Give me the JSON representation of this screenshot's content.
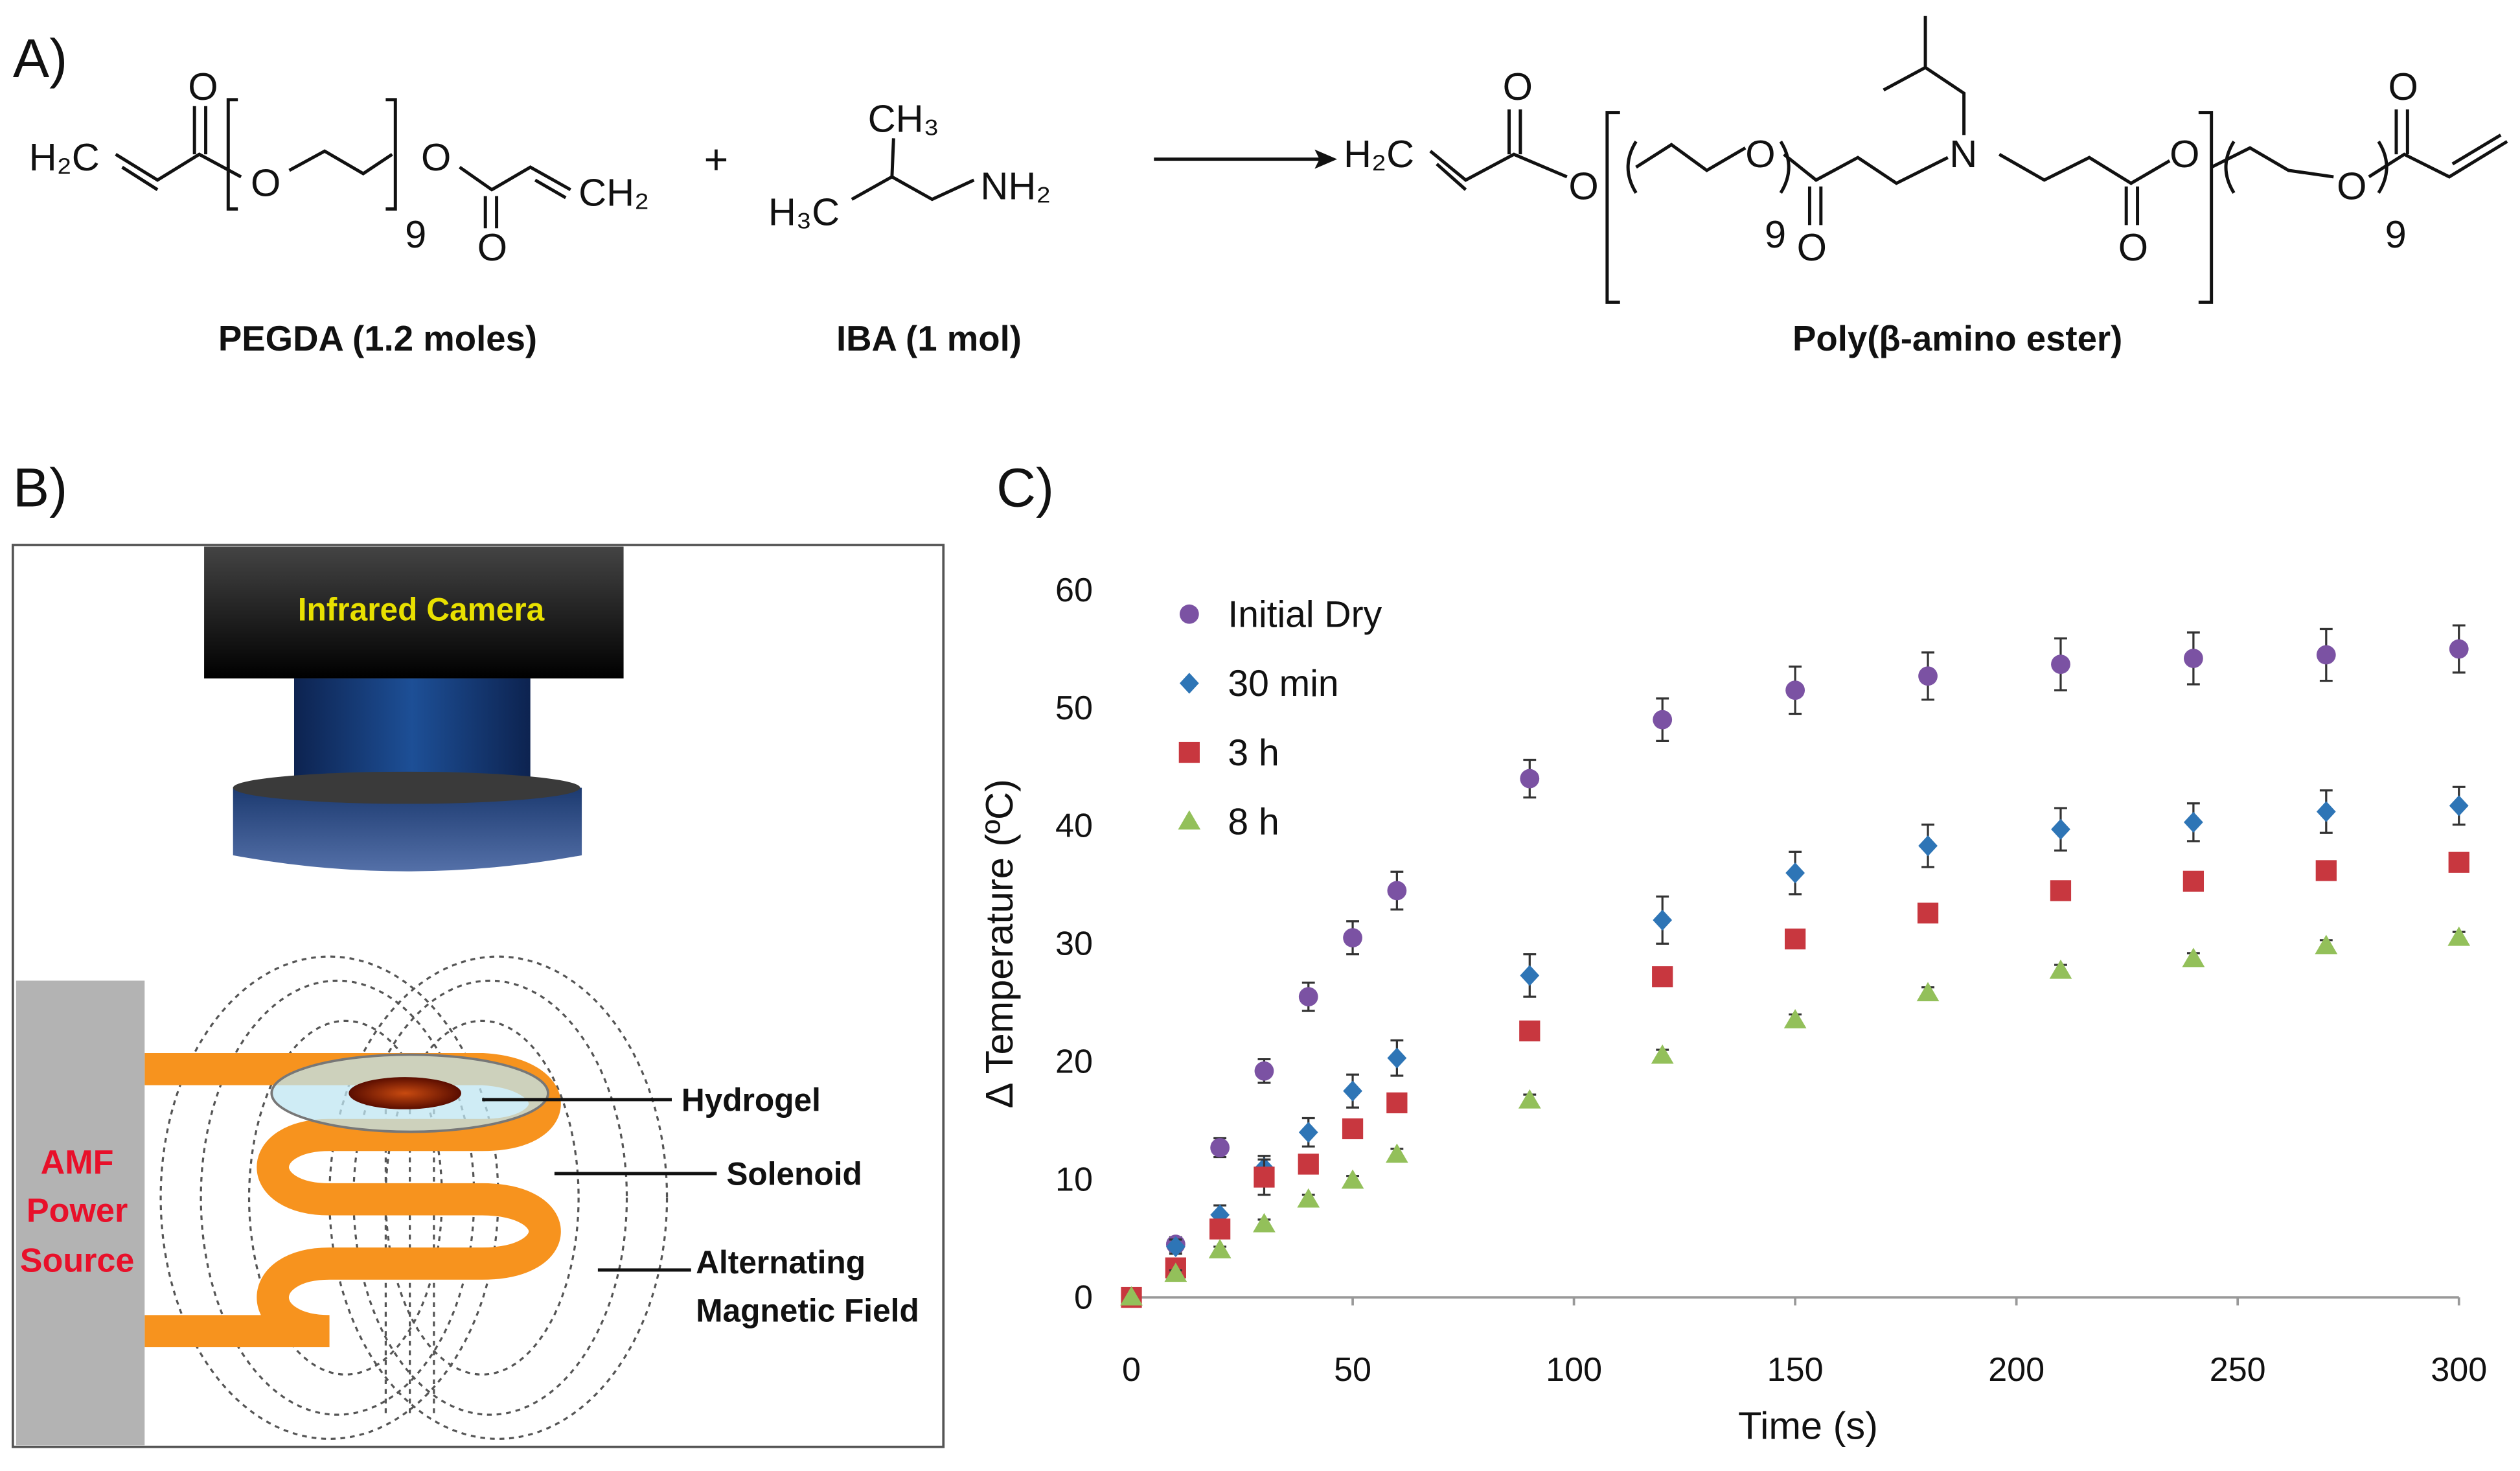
{
  "panels": {
    "a": "A)",
    "b": "B)",
    "c": "C)"
  },
  "scheme": {
    "atoms": [
      "H₂C",
      "O",
      "O",
      "9",
      "O",
      "O",
      "CH₂",
      "CH₃",
      "H₃C",
      "NH₂",
      "H₂C",
      "O",
      "O",
      "O",
      "9",
      "O",
      "N",
      "O",
      "O",
      "9",
      "O",
      "O"
    ],
    "plus": "+",
    "labels": [
      "PEGDA (1.2 moles)",
      "IBA (1 mol)",
      "Poly(β-amino ester)"
    ]
  },
  "diagram": {
    "camera": "Infrared Camera",
    "source": [
      "AMF",
      "Power",
      "Source"
    ],
    "hydrogel": "Hydrogel",
    "solenoid": "Solenoid",
    "field": [
      "Alternating",
      "Magnetic Field"
    ]
  },
  "chart_data": {
    "type": "scatter",
    "x_label": "Time (s)",
    "y_label": "Δ Temperature (ºC)",
    "x": [
      0,
      10,
      20,
      30,
      40,
      50,
      60,
      90,
      120,
      150,
      180,
      210,
      240,
      270,
      300
    ],
    "series": [
      {
        "name": "Initial Dry",
        "color": "#7b52a3",
        "marker": "circle",
        "values": [
          0,
          4.5,
          12.7,
          19.2,
          25.5,
          30.5,
          34.5,
          44,
          49,
          51.5,
          52.7,
          53.7,
          54.2,
          54.5,
          55
        ],
        "errors": [
          0,
          0.6,
          0.8,
          1.0,
          1.2,
          1.4,
          1.6,
          1.6,
          1.8,
          2.0,
          2.0,
          2.2,
          2.2,
          2.2,
          2.0
        ]
      },
      {
        "name": "30 min",
        "color": "#2e75b6",
        "marker": "diamond",
        "values": [
          0,
          4.3,
          7,
          11,
          14,
          17.5,
          20.3,
          27.3,
          32,
          36,
          38.3,
          39.7,
          40.3,
          41.2,
          41.7
        ],
        "errors": [
          0,
          0.6,
          0.8,
          1.0,
          1.2,
          1.4,
          1.5,
          1.8,
          2.0,
          1.8,
          1.8,
          1.8,
          1.6,
          1.8,
          1.6
        ]
      },
      {
        "name": "3 h",
        "color": "#c8373f",
        "marker": "square",
        "values": [
          0,
          2.5,
          5.8,
          10.2,
          11.3,
          14.3,
          16.5,
          22.6,
          27.2,
          30.4,
          32.6,
          34.5,
          35.3,
          36.2,
          36.9
        ],
        "errors": [
          0,
          0.3,
          0.4,
          1.5,
          0.5,
          0.4,
          0.4,
          0.4,
          0.5,
          0.5,
          0.5,
          0.5,
          0.5,
          0.5,
          0.5
        ]
      },
      {
        "name": "8 h",
        "color": "#93c05a",
        "marker": "triangle",
        "values": [
          0,
          2,
          4,
          6.2,
          8.3,
          9.9,
          12.1,
          16.7,
          20.5,
          23.5,
          25.8,
          27.7,
          28.7,
          29.8,
          30.5
        ],
        "errors": [
          0,
          0.3,
          0.3,
          0.4,
          0.4,
          0.4,
          0.5,
          0.5,
          0.5,
          0.5,
          0.5,
          0.5,
          0.5,
          0.5,
          0.5
        ]
      }
    ],
    "xlim": [
      0,
      300
    ],
    "xticks": [
      0,
      50,
      100,
      150,
      200,
      250,
      300
    ],
    "ylim": [
      0,
      60
    ],
    "yticks": [
      0,
      10,
      20,
      30,
      40,
      50,
      60
    ],
    "legend": "upper left",
    "grid": false
  }
}
